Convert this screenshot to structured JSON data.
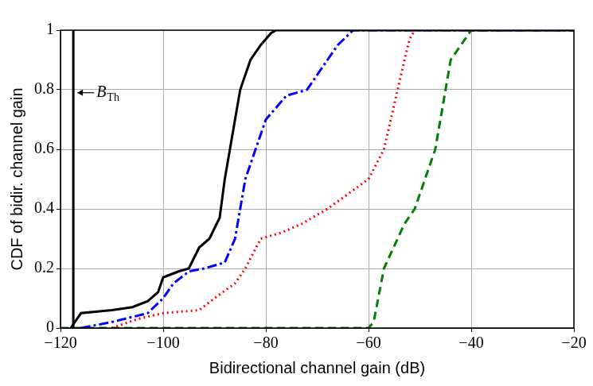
{
  "chart_data": {
    "type": "line",
    "x_label": "Bidirectional channel gain (dB)",
    "y_label": "CDF of bidir. channel gain",
    "xlim": [
      -120,
      -20
    ],
    "xticks": [
      {
        "value": -120,
        "label": "−120"
      },
      {
        "value": -100,
        "label": "−100"
      },
      {
        "value": -80,
        "label": "−80"
      },
      {
        "value": -60,
        "label": "−60"
      },
      {
        "value": -40,
        "label": "−40"
      },
      {
        "value": -20,
        "label": "−20"
      }
    ],
    "ylim": [
      0,
      1
    ],
    "yticks": [
      0,
      0.2,
      0.4,
      0.6,
      0.8,
      1
    ],
    "grid": true,
    "series": [
      {
        "color": "#000000",
        "line_style": "solid",
        "x": [
          -117.5,
          -117.5
        ],
        "values": [
          0,
          1
        ]
      },
      {
        "color": "#000000",
        "line_style": "solid",
        "x": [
          -118,
          -116,
          -110,
          -106,
          -103,
          -101,
          -100,
          -97,
          -95,
          -93,
          -91,
          -89,
          -88,
          -87,
          -86,
          -85,
          -83,
          -81,
          -79,
          -78,
          -20
        ],
        "values": [
          0,
          0.05,
          0.06,
          0.07,
          0.09,
          0.12,
          0.17,
          0.19,
          0.2,
          0.27,
          0.3,
          0.37,
          0.5,
          0.6,
          0.7,
          0.8,
          0.9,
          0.95,
          0.99,
          1,
          1
        ]
      },
      {
        "color": "#0000ff",
        "line_style": "dashdot",
        "x": [
          -116,
          -110,
          -103,
          -100,
          -98,
          -95,
          -92,
          -88,
          -86,
          -84,
          -82,
          -80,
          -76,
          -72,
          -70,
          -68,
          -66,
          -63,
          -20
        ],
        "values": [
          0,
          0.02,
          0.05,
          0.1,
          0.15,
          0.19,
          0.2,
          0.22,
          0.3,
          0.5,
          0.6,
          0.7,
          0.78,
          0.8,
          0.85,
          0.9,
          0.95,
          1,
          1
        ]
      },
      {
        "color": "#ff0000",
        "line_style": "dotted",
        "x": [
          -110,
          -105,
          -100,
          -93,
          -90,
          -86,
          -84,
          -81,
          -77,
          -73,
          -68,
          -64,
          -60,
          -57,
          -55,
          -53,
          -52,
          -51,
          -20
        ],
        "values": [
          0,
          0.03,
          0.05,
          0.06,
          0.1,
          0.15,
          0.2,
          0.3,
          0.32,
          0.35,
          0.4,
          0.45,
          0.5,
          0.6,
          0.75,
          0.9,
          0.97,
          1,
          1
        ]
      },
      {
        "color": "#008000",
        "line_style": "dashed",
        "x": [
          -120,
          -60,
          -59,
          -57,
          -53,
          -51,
          -50,
          -47,
          -46,
          -45,
          -44,
          -42,
          -40,
          -20
        ],
        "values": [
          0,
          0,
          0.02,
          0.2,
          0.35,
          0.4,
          0.45,
          0.6,
          0.7,
          0.8,
          0.9,
          0.95,
          1,
          1
        ]
      }
    ],
    "annotations": [
      {
        "text": "B",
        "subscript": "Th",
        "x": -117.5,
        "y": 0.79
      }
    ]
  }
}
